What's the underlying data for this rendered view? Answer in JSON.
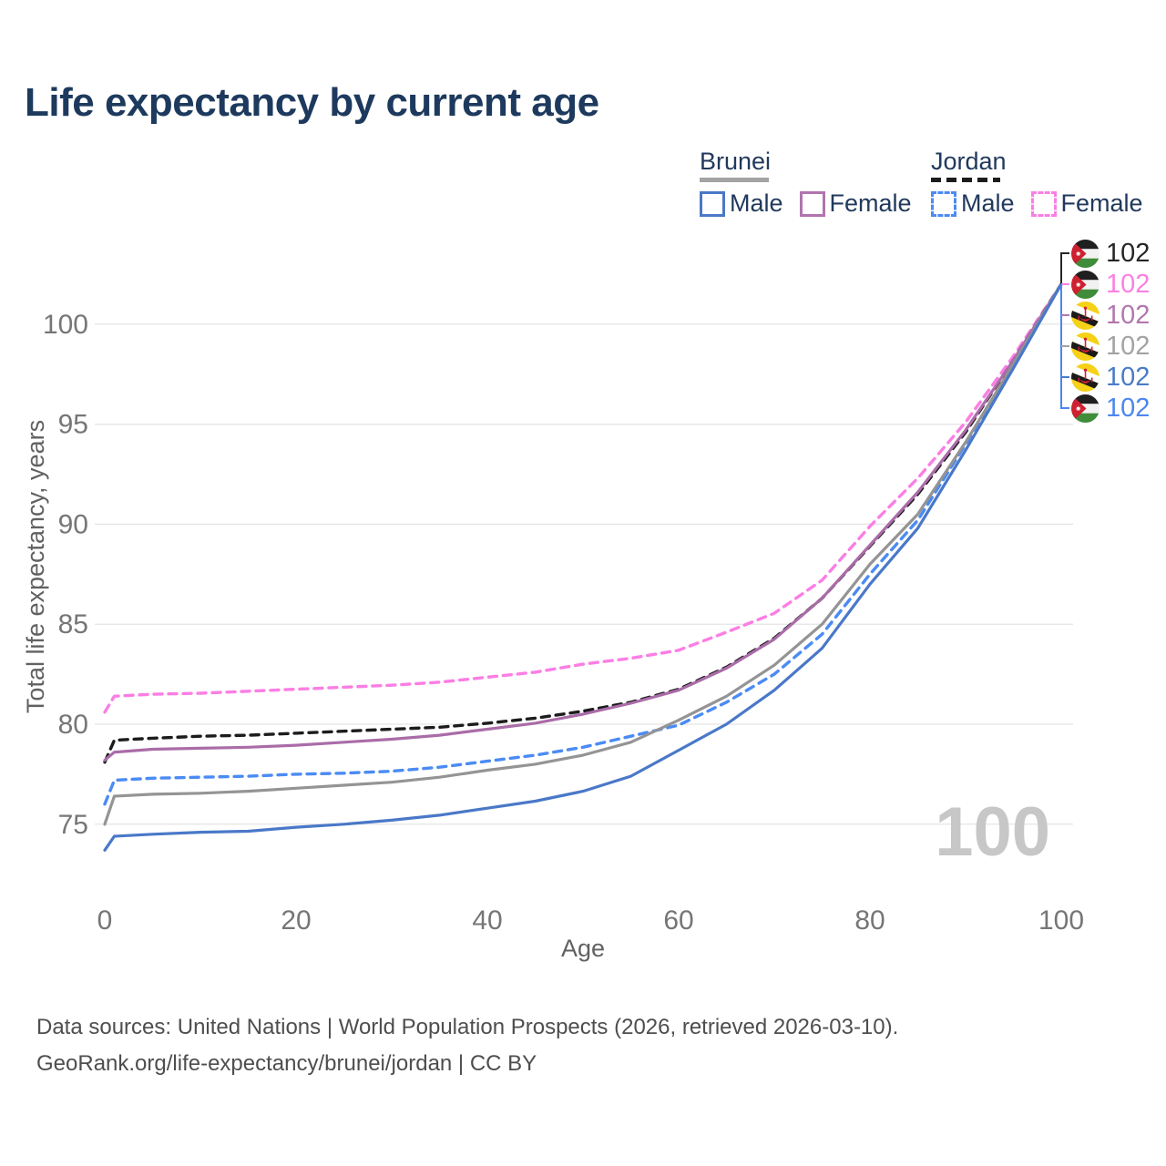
{
  "title": "Life expectancy by current age",
  "legend": {
    "groups": [
      {
        "country": "Brunei",
        "line_style": "solid",
        "line_color": "#a3a3a3",
        "items": [
          {
            "label": "Male",
            "style": "solid",
            "color": "#4a78c8"
          },
          {
            "label": "Female",
            "style": "solid",
            "color": "#b274ae"
          }
        ]
      },
      {
        "country": "Jordan",
        "line_style": "dashed",
        "line_color": "#1c1c1c",
        "items": [
          {
            "label": "Male",
            "style": "dashed",
            "color": "#4b8bf4"
          },
          {
            "label": "Female",
            "style": "dashed",
            "color": "#fb7ee4"
          }
        ]
      }
    ]
  },
  "chart_data": {
    "type": "line",
    "title": "Life expectancy by current age",
    "xlabel": "Age",
    "ylabel": "Total life expectancy, years",
    "xlim": [
      0,
      100
    ],
    "ylim": [
      73,
      103
    ],
    "x_ticks": [
      0,
      20,
      40,
      60,
      80,
      100
    ],
    "y_ticks": [
      75,
      80,
      85,
      90,
      95,
      100
    ],
    "grid": "horizontal",
    "x": [
      0,
      1,
      5,
      10,
      15,
      20,
      25,
      30,
      35,
      40,
      45,
      50,
      55,
      60,
      65,
      70,
      75,
      80,
      85,
      90,
      95,
      100
    ],
    "series": [
      {
        "name": "Jordan Female",
        "country": "Jordan",
        "sex": "Female",
        "color": "#fb7ee4",
        "dash": true,
        "values": [
          80.6,
          81.4,
          81.5,
          81.55,
          81.65,
          81.75,
          81.85,
          81.95,
          82.1,
          82.35,
          82.6,
          83.0,
          83.3,
          83.7,
          84.6,
          85.55,
          87.2,
          89.9,
          92.3,
          95.1,
          98.4,
          102
        ]
      },
      {
        "name": "Jordan",
        "country": "Jordan",
        "sex": "Both",
        "color": "#1c1c1c",
        "dash": true,
        "values": [
          78.1,
          79.2,
          79.3,
          79.4,
          79.45,
          79.55,
          79.65,
          79.75,
          79.85,
          80.05,
          80.3,
          80.65,
          81.1,
          81.75,
          82.85,
          84.3,
          86.3,
          88.9,
          91.5,
          94.6,
          98.2,
          102
        ]
      },
      {
        "name": "Brunei Female",
        "country": "Brunei",
        "sex": "Female",
        "color": "#aa6ca8",
        "dash": false,
        "values": [
          78.2,
          78.6,
          78.75,
          78.8,
          78.85,
          78.95,
          79.1,
          79.25,
          79.45,
          79.75,
          80.05,
          80.5,
          81.05,
          81.7,
          82.8,
          84.25,
          86.3,
          88.95,
          91.6,
          94.7,
          98.2,
          102
        ]
      },
      {
        "name": "Jordan Male",
        "country": "Jordan",
        "sex": "Male",
        "color": "#4b8bf4",
        "dash": true,
        "values": [
          76.0,
          77.2,
          77.3,
          77.35,
          77.4,
          77.5,
          77.55,
          77.65,
          77.85,
          78.15,
          78.45,
          78.85,
          79.4,
          79.95,
          81.1,
          82.5,
          84.5,
          87.5,
          90.2,
          94.0,
          98.0,
          102
        ]
      },
      {
        "name": "Brunei",
        "country": "Brunei",
        "sex": "Both",
        "color": "#949494",
        "dash": false,
        "values": [
          75.0,
          76.4,
          76.5,
          76.55,
          76.65,
          76.8,
          76.95,
          77.1,
          77.35,
          77.7,
          78.0,
          78.45,
          79.1,
          80.2,
          81.4,
          82.95,
          85.0,
          88.0,
          90.5,
          94.1,
          98.0,
          102
        ]
      },
      {
        "name": "Brunei Male",
        "country": "Brunei",
        "sex": "Male",
        "color": "#4a78c8",
        "dash": false,
        "values": [
          73.7,
          74.4,
          74.5,
          74.6,
          74.65,
          74.85,
          75.0,
          75.2,
          75.45,
          75.8,
          76.15,
          76.65,
          77.4,
          78.7,
          80.0,
          81.7,
          83.8,
          87.0,
          89.8,
          93.7,
          97.8,
          102
        ]
      }
    ]
  },
  "end_labels": [
    {
      "icon": "jordan-flag-icon",
      "flag": "jordan",
      "color": "#262626",
      "value": "102"
    },
    {
      "icon": "jordan-flag-icon",
      "flag": "jordan",
      "color": "#fb80e3",
      "value": "102"
    },
    {
      "icon": "brunei-flag-icon",
      "flag": "brunei",
      "color": "#b277af",
      "value": "102"
    },
    {
      "icon": "brunei-flag-icon",
      "flag": "brunei",
      "color": "#a3a3a3",
      "value": "102"
    },
    {
      "icon": "brunei-flag-icon",
      "flag": "brunei",
      "color": "#4b7bc8",
      "value": "102"
    },
    {
      "icon": "jordan-flag-icon",
      "flag": "jordan",
      "color": "#4c86f0",
      "value": "102"
    }
  ],
  "watermark": "100",
  "footer": {
    "line1": "Data sources: United Nations | World Population Prospects (2026, retrieved 2026-03-10).",
    "line2": "GeoRank.org/life-expectancy/brunei/jordan | CC BY"
  }
}
